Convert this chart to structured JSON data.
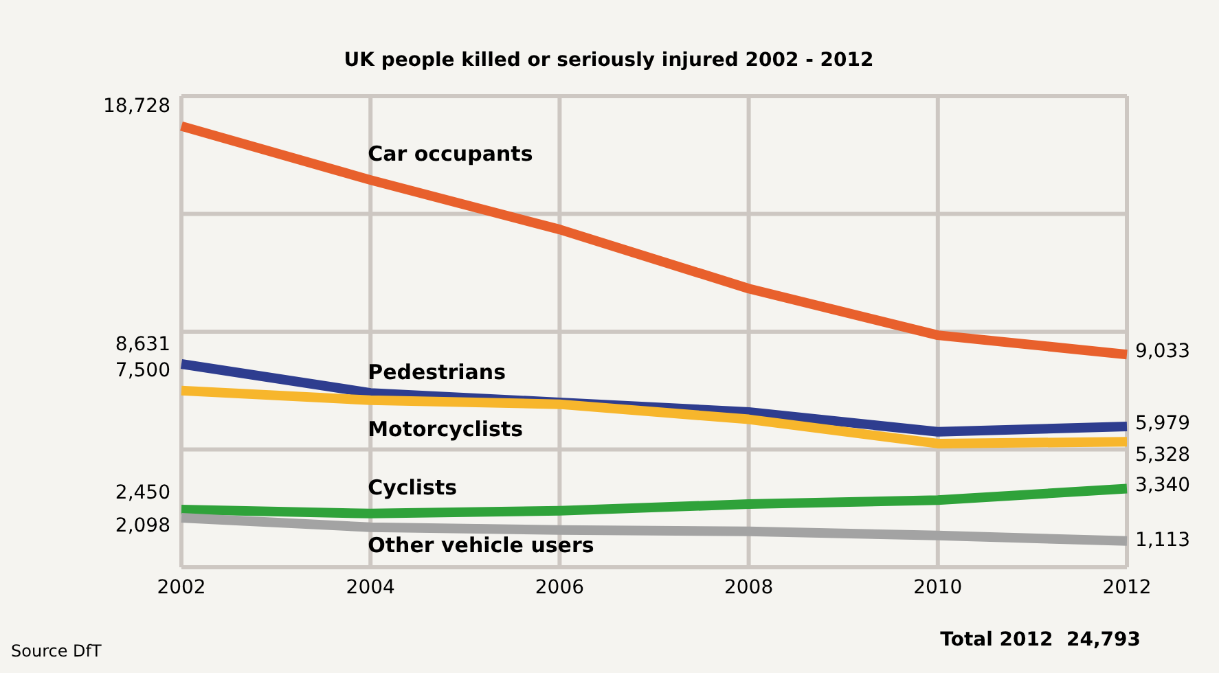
{
  "chart_data": {
    "type": "line",
    "title": "UK people killed or seriously injured 2002 - 2012",
    "x": [
      2002,
      2004,
      2006,
      2008,
      2010,
      2012
    ],
    "xlim": [
      2002,
      2012
    ],
    "xticks": [
      2002,
      2004,
      2006,
      2008,
      2010,
      2012
    ],
    "ylim": [
      0,
      20000
    ],
    "yticks": [
      {
        "value": 5000,
        "label": null
      },
      {
        "value": 10000,
        "label": null
      },
      {
        "value": 15000,
        "label": null
      },
      {
        "value": 20000,
        "label": null
      }
    ],
    "tick_labels": "x",
    "grid": true,
    "marker": "none",
    "line_style": "solid",
    "series": [
      {
        "name": "Car occupants",
        "color": "#e8602c",
        "values": [
          18728,
          16440,
          14340,
          11830,
          9850,
          9033
        ],
        "value_labels": [
          "18,728",
          null,
          null,
          null,
          null,
          "9,033"
        ]
      },
      {
        "name": "Pedestrians",
        "color": "#2e3d8f",
        "values": [
          8631,
          7400,
          7000,
          6590,
          5750,
          5979
        ],
        "value_labels": [
          "8,631",
          null,
          null,
          null,
          null,
          "5,979"
        ]
      },
      {
        "name": "Motorcyclists",
        "color": "#f7b62c",
        "values": [
          7500,
          7090,
          6920,
          6280,
          5250,
          5328
        ],
        "value_labels": [
          "7,500",
          null,
          null,
          null,
          null,
          "5,328"
        ]
      },
      {
        "name": "Cyclists",
        "color": "#2fa23a",
        "values": [
          2450,
          2280,
          2400,
          2680,
          2850,
          3340
        ],
        "value_labels": [
          "2,450",
          null,
          null,
          null,
          null,
          "3,340"
        ]
      },
      {
        "name": "Other vehicle users",
        "color": "#a3a3a3",
        "values": [
          2098,
          1700,
          1580,
          1520,
          1350,
          1113
        ],
        "value_labels": [
          "2,098",
          null,
          null,
          null,
          null,
          "1,113"
        ]
      }
    ],
    "annotations": [
      "Source DfT",
      "Total 2012  24,793"
    ]
  }
}
